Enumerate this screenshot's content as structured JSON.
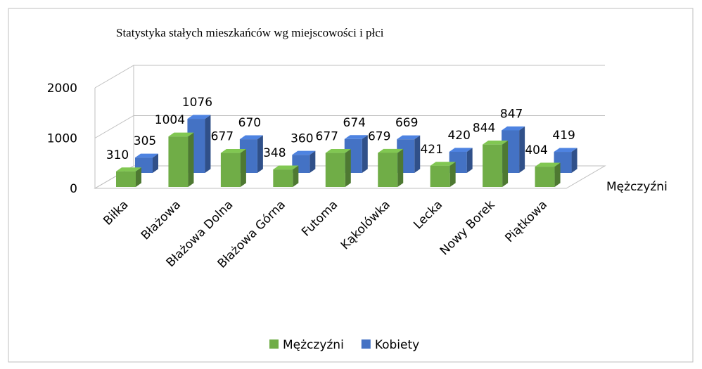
{
  "chart_data": {
    "type": "bar3d",
    "title": "Statystyka stałych mieszkańców wg miejscowości i płci",
    "categories": [
      "Biłka",
      "Błażowa",
      "Błażowa Dolna",
      "Błażowa Górna",
      "Futoma",
      "Kąkolówka",
      "Lecka",
      "Nowy Borek",
      "Piątkowa"
    ],
    "series": [
      {
        "name": "Mężczyźni",
        "color": "#70ad47",
        "values": [
          310,
          1004,
          677,
          348,
          677,
          679,
          421,
          844,
          404
        ]
      },
      {
        "name": "Kobiety",
        "color": "#4472c4",
        "values": [
          305,
          1076,
          670,
          360,
          674,
          669,
          420,
          847,
          419
        ]
      }
    ],
    "depth_axis_label": "Mężczyźni",
    "ylim": [
      0,
      2000
    ],
    "yticks": [
      0,
      1000,
      2000
    ],
    "grid": true,
    "legend": "bottom"
  }
}
